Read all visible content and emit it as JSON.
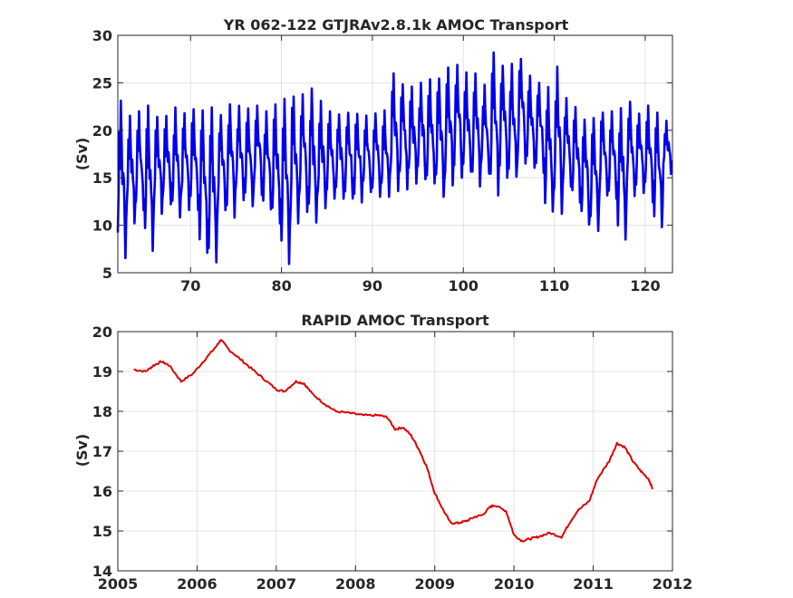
{
  "chart_data": [
    {
      "type": "line",
      "title": "YR 062-122 GTJRAv2.8.1k AMOC Transport",
      "xlabel": "",
      "ylabel": "(Sv)",
      "xlim": [
        62,
        123
      ],
      "ylim": [
        5,
        30
      ],
      "xticks": [
        "70",
        "80",
        "90",
        "100",
        "110",
        "120"
      ],
      "yticks": [
        "5",
        "10",
        "15",
        "20",
        "25",
        "30"
      ],
      "grid": true,
      "series": [
        {
          "color": "#0000ee",
          "description": "Monthly AMOC transport with strong seasonal cycle; annual values approximated as monthly peaks/troughs",
          "annual_max": [
            23.7,
            21.6,
            22.0,
            22.6,
            21.8,
            21.5,
            22.4,
            21.8,
            22.4,
            22.1,
            22.4,
            21.6,
            22.9,
            22.6,
            22.3,
            22.6,
            22.0,
            23.0,
            23.4,
            24.4,
            23.8,
            24.4,
            23.1,
            22.0,
            22.0,
            22.2,
            22.0,
            22.0,
            22.0,
            22.1,
            26.0,
            25.5,
            24.6,
            25.0,
            25.4,
            25.9,
            26.6,
            26.9,
            26.1,
            26.4,
            25.0,
            28.2,
            26.9,
            27.0,
            28.0,
            26.0,
            25.0,
            24.6,
            26.7,
            23.4,
            22.5,
            21.8,
            22.0,
            22.3,
            22.0,
            23.0,
            23.1,
            21.8,
            22.6,
            22.0,
            21.0
          ],
          "annual_min": [
            6.3,
            10.2,
            11.1,
            6.8,
            11.2,
            12.2,
            10.7,
            11.6,
            11.3,
            7.1,
            6.1,
            11.4,
            10.8,
            12.6,
            12.0,
            13.2,
            11.6,
            10.2,
            5.9,
            10.2,
            11.4,
            10.0,
            11.6,
            12.8,
            12.8,
            12.6,
            12.4,
            13.0,
            13.0,
            13.0,
            13.6,
            13.4,
            14.0,
            14.3,
            14.0,
            13.0,
            14.2,
            15.0,
            15.0,
            14.0,
            15.0,
            13.0,
            15.0,
            14.5,
            16.0,
            15.6,
            15.4,
            11.0,
            11.2,
            13.5,
            12.4,
            9.6,
            9.4,
            13.0,
            12.8,
            8.1,
            13.0,
            13.4,
            12.4,
            9.8,
            15.4
          ]
        }
      ]
    },
    {
      "type": "line",
      "title": "RAPID AMOC Transport",
      "xlabel": "",
      "ylabel": "(Sv)",
      "xlim": [
        2005,
        2012
      ],
      "ylim": [
        14,
        20
      ],
      "xticks": [
        "2005",
        "2006",
        "2007",
        "2008",
        "2009",
        "2010",
        "2011",
        "2012"
      ],
      "yticks": [
        "14",
        "15",
        "16",
        "17",
        "18",
        "19",
        "20"
      ],
      "grid": true,
      "series": [
        {
          "color": "#dd0000",
          "x": [
            2005.2,
            2005.35,
            2005.45,
            2005.55,
            2005.65,
            2005.8,
            2005.95,
            2006.1,
            2006.25,
            2006.3,
            2006.4,
            2006.55,
            2006.7,
            2006.85,
            2007.0,
            2007.1,
            2007.25,
            2007.35,
            2007.45,
            2007.6,
            2007.75,
            2007.95,
            2008.1,
            2008.3,
            2008.4,
            2008.5,
            2008.6,
            2008.7,
            2008.8,
            2008.9,
            2009.0,
            2009.1,
            2009.2,
            2009.3,
            2009.4,
            2009.5,
            2009.6,
            2009.7,
            2009.75,
            2009.9,
            2010.0,
            2010.1,
            2010.2,
            2010.3,
            2010.45,
            2010.6,
            2010.7,
            2010.8,
            2010.95,
            2011.05,
            2011.2,
            2011.3,
            2011.4,
            2011.5,
            2011.6,
            2011.7,
            2011.75
          ],
          "y": [
            19.05,
            19.0,
            19.15,
            19.25,
            19.15,
            18.75,
            18.95,
            19.3,
            19.65,
            19.8,
            19.55,
            19.3,
            19.05,
            18.8,
            18.55,
            18.5,
            18.75,
            18.7,
            18.45,
            18.2,
            18.0,
            17.95,
            17.9,
            17.9,
            17.85,
            17.55,
            17.6,
            17.4,
            17.05,
            16.6,
            15.95,
            15.55,
            15.2,
            15.2,
            15.25,
            15.35,
            15.4,
            15.6,
            15.65,
            15.5,
            14.9,
            14.75,
            14.8,
            14.85,
            14.95,
            14.85,
            15.2,
            15.5,
            15.75,
            16.3,
            16.75,
            17.2,
            17.1,
            16.75,
            16.5,
            16.3,
            16.05
          ]
        }
      ]
    }
  ]
}
